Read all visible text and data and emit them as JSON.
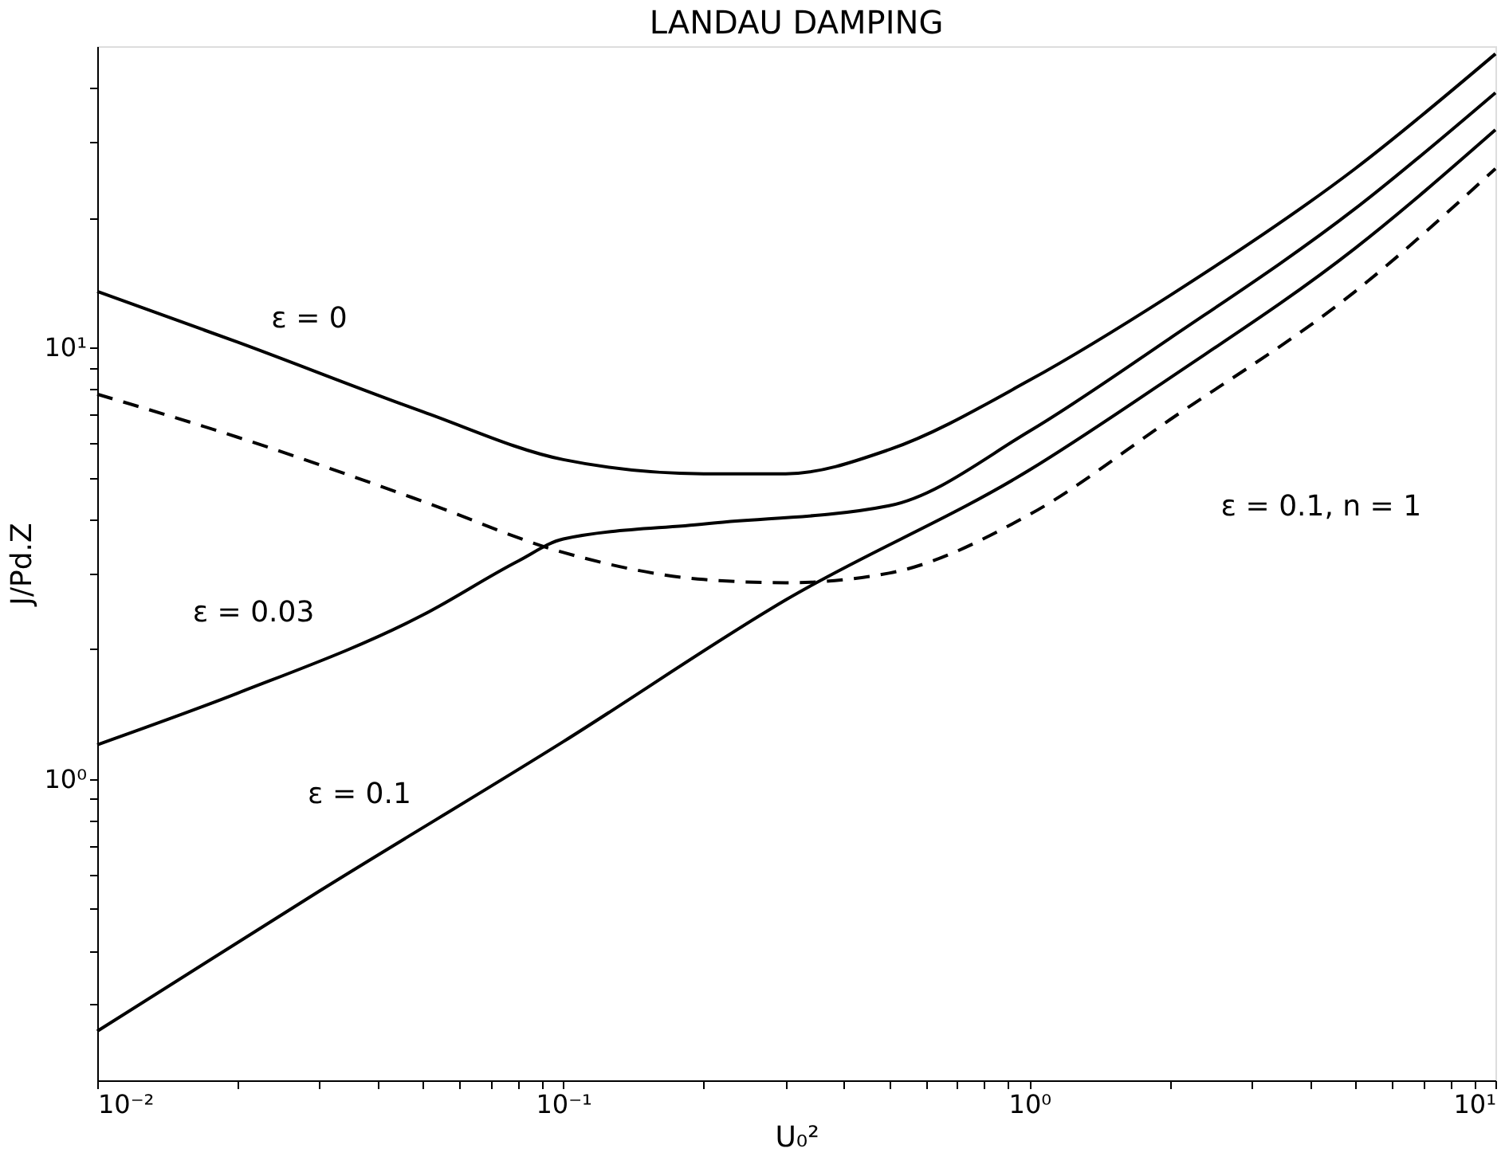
{
  "chart_data": {
    "type": "line",
    "title": "LANDAU DAMPING",
    "xlabel": "U₀²",
    "ylabel": "J/Pd.Z",
    "log": "xy",
    "grid": false,
    "marker": "none",
    "xlim": [
      0.01,
      10
    ],
    "ylim": [
      0.2,
      50
    ],
    "xticks": [
      {
        "value": 0.01,
        "label": "10⁻²"
      },
      {
        "value": 0.02,
        "label": null
      },
      {
        "value": 0.03,
        "label": null
      },
      {
        "value": 0.04,
        "label": null
      },
      {
        "value": 0.05,
        "label": null
      },
      {
        "value": 0.06,
        "label": null
      },
      {
        "value": 0.07,
        "label": null
      },
      {
        "value": 0.08,
        "label": null
      },
      {
        "value": 0.09,
        "label": null
      },
      {
        "value": 0.1,
        "label": "10⁻¹"
      },
      {
        "value": 0.2,
        "label": null
      },
      {
        "value": 0.3,
        "label": null
      },
      {
        "value": 0.4,
        "label": null
      },
      {
        "value": 0.5,
        "label": null
      },
      {
        "value": 0.6,
        "label": null
      },
      {
        "value": 0.7,
        "label": null
      },
      {
        "value": 0.8,
        "label": null
      },
      {
        "value": 0.9,
        "label": null
      },
      {
        "value": 1,
        "label": "10⁰"
      },
      {
        "value": 2,
        "label": null
      },
      {
        "value": 3,
        "label": null
      },
      {
        "value": 4,
        "label": null
      },
      {
        "value": 5,
        "label": null
      },
      {
        "value": 6,
        "label": null
      },
      {
        "value": 7,
        "label": null
      },
      {
        "value": 8,
        "label": null
      },
      {
        "value": 9,
        "label": null
      },
      {
        "value": 10,
        "label": "10¹"
      }
    ],
    "yticks": [
      {
        "value": 0.3,
        "label": null
      },
      {
        "value": 0.4,
        "label": null
      },
      {
        "value": 0.5,
        "label": null
      },
      {
        "value": 0.6,
        "label": null
      },
      {
        "value": 0.7,
        "label": null
      },
      {
        "value": 0.8,
        "label": null
      },
      {
        "value": 0.9,
        "label": null
      },
      {
        "value": 1,
        "label": "10⁰"
      },
      {
        "value": 2,
        "label": null
      },
      {
        "value": 3,
        "label": null
      },
      {
        "value": 4,
        "label": null
      },
      {
        "value": 5,
        "label": null
      },
      {
        "value": 6,
        "label": null
      },
      {
        "value": 7,
        "label": null
      },
      {
        "value": 8,
        "label": null
      },
      {
        "value": 9,
        "label": null
      },
      {
        "value": 10,
        "label": "10¹"
      },
      {
        "value": 20,
        "label": null
      },
      {
        "value": 30,
        "label": null
      },
      {
        "value": 40,
        "label": null
      }
    ],
    "series": [
      {
        "color": "#000000",
        "line_style": "solid",
        "x": [
          0.01,
          0.02,
          0.05,
          0.1,
          0.2,
          0.3,
          0.5,
          1,
          2,
          5,
          10
        ],
        "values": [
          13.5,
          10.3,
          7.1,
          5.5,
          5.1,
          5.1,
          5.8,
          8.4,
          13.2,
          26,
          48
        ]
      },
      {
        "color": "#000000",
        "line_style": "solid",
        "x": [
          0.01,
          0.02,
          0.05,
          0.08,
          0.1,
          0.2,
          0.5,
          1,
          2,
          5,
          10
        ],
        "values": [
          1.2,
          1.58,
          2.4,
          3.2,
          3.6,
          3.9,
          4.3,
          6.4,
          10.5,
          21,
          39
        ]
      },
      {
        "color": "#000000",
        "line_style": "solid",
        "x": [
          0.01,
          0.03,
          0.1,
          0.3,
          1,
          2,
          5,
          10
        ],
        "values": [
          0.26,
          0.55,
          1.22,
          2.6,
          5.2,
          8.5,
          17,
          32
        ]
      },
      {
        "color": "#000000",
        "line_style": "dashed",
        "x": [
          0.01,
          0.02,
          0.05,
          0.1,
          0.2,
          0.3,
          0.5,
          1,
          2,
          5,
          10
        ],
        "values": [
          7.8,
          6.2,
          4.4,
          3.35,
          2.9,
          2.85,
          3.0,
          4.1,
          6.8,
          13.5,
          26
        ]
      }
    ],
    "annotations": [
      "ε = 0",
      "ε = 0.03",
      "ε = 0.1",
      "ε = 0.1,  n = 1"
    ]
  }
}
